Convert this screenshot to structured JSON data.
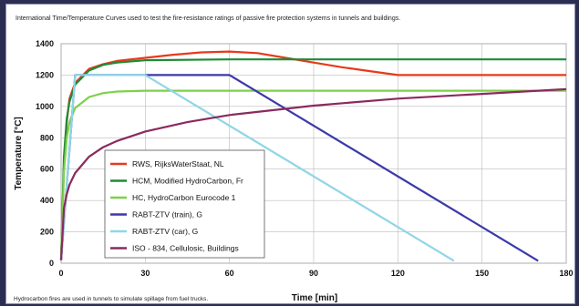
{
  "chart_data": {
    "type": "line",
    "title": "International Time/Temperature Curves used to test the fire-resistance ratings of passive fire protection systems in tunnels and buildings.",
    "footnote": "Hydrocarbon fires are used in tunnels to simulate spillage from fuel trucks.",
    "xlabel": "Time [min]",
    "ylabel": "Temperature [°C]",
    "xlim": [
      0,
      180
    ],
    "ylim": [
      0,
      1400
    ],
    "xticks": [
      0,
      30,
      60,
      90,
      120,
      150,
      180
    ],
    "yticks": [
      0,
      200,
      400,
      600,
      800,
      1000,
      1200,
      1400
    ],
    "grid": true,
    "legend_position": "lower-left",
    "series": [
      {
        "name": "RWS, RijksWaterStaat, NL",
        "color": "#e8391c",
        "x": [
          0,
          1,
          2,
          3,
          5,
          10,
          15,
          20,
          30,
          40,
          50,
          60,
          70,
          80,
          90,
          100,
          110,
          120,
          180
        ],
        "y": [
          20,
          620,
          900,
          1050,
          1150,
          1240,
          1270,
          1290,
          1310,
          1330,
          1345,
          1350,
          1340,
          1310,
          1280,
          1250,
          1225,
          1200,
          1200
        ]
      },
      {
        "name": "HCM, Modified HydroCarbon, Fr",
        "color": "#1f8a35",
        "x": [
          0,
          1,
          2,
          3,
          5,
          10,
          15,
          20,
          30,
          60,
          90,
          120,
          180
        ],
        "y": [
          20,
          680,
          920,
          1030,
          1140,
          1230,
          1265,
          1280,
          1295,
          1300,
          1300,
          1300,
          1300
        ]
      },
      {
        "name": "HC, HydroCarbon Eurocode 1",
        "color": "#7ed04b",
        "x": [
          0,
          1,
          2,
          3,
          5,
          10,
          15,
          20,
          30,
          60,
          90,
          120,
          180
        ],
        "y": [
          20,
          580,
          800,
          900,
          990,
          1060,
          1085,
          1095,
          1100,
          1100,
          1100,
          1100,
          1100
        ]
      },
      {
        "name": "RABT-ZTV (train), G",
        "color": "#3c3aa8",
        "x": [
          0,
          5,
          60,
          170
        ],
        "y": [
          20,
          1200,
          1200,
          15
        ]
      },
      {
        "name": "RABT-ZTV (car), G",
        "color": "#8fd6e6",
        "x": [
          0,
          5,
          30,
          140
        ],
        "y": [
          20,
          1200,
          1200,
          15
        ]
      },
      {
        "name": "ISO - 834, Cellulosic, Buildings",
        "color": "#8a2a5e",
        "x": [
          0,
          1,
          2,
          3,
          5,
          10,
          15,
          20,
          30,
          45,
          60,
          90,
          120,
          150,
          180
        ],
        "y": [
          20,
          350,
          440,
          500,
          575,
          680,
          740,
          780,
          840,
          900,
          945,
          1005,
          1050,
          1080,
          1110
        ]
      }
    ]
  }
}
